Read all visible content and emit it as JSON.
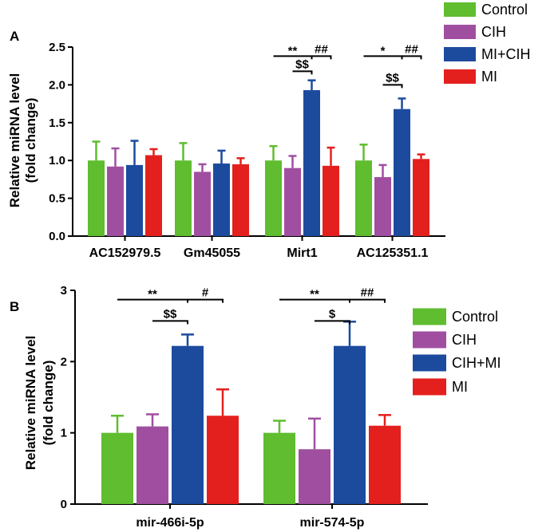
{
  "chart_data": [
    {
      "panel_label": "A",
      "type": "bar",
      "ylabel": [
        "Relative miRNA level",
        "(fold change)"
      ],
      "ylim": [
        0,
        2.5
      ],
      "yticks": [
        "0.0",
        "0.5",
        "1.0",
        "1.5",
        "2.0",
        "2.5"
      ],
      "yticks_values": [
        0,
        0.5,
        1.0,
        1.5,
        2.0,
        2.5
      ],
      "categories": [
        "AC152979.5",
        "Gm45055",
        "Mirt1",
        "AC125351.1"
      ],
      "legend": [
        "Control",
        "CIH",
        "MI+CIH",
        "MI"
      ],
      "series": [
        {
          "name": "Control",
          "color": "#5fbd2f",
          "values": [
            1.0,
            1.0,
            1.0,
            1.0
          ],
          "errors": [
            0.25,
            0.23,
            0.19,
            0.21
          ]
        },
        {
          "name": "CIH",
          "color": "#a04fa0",
          "values": [
            0.92,
            0.85,
            0.9,
            0.78
          ],
          "errors": [
            0.24,
            0.1,
            0.16,
            0.16
          ]
        },
        {
          "name": "MI+CIH",
          "color": "#1c4b9e",
          "values": [
            0.94,
            0.96,
            1.93,
            1.68
          ],
          "errors": [
            0.32,
            0.17,
            0.13,
            0.14
          ]
        },
        {
          "name": "MI",
          "color": "#e3201d",
          "values": [
            1.07,
            0.95,
            0.93,
            1.02
          ],
          "errors": [
            0.08,
            0.08,
            0.24,
            0.06
          ]
        }
      ],
      "annotations": [
        {
          "category": 2,
          "from": 0,
          "to": 2,
          "y": 2.38,
          "label": "**"
        },
        {
          "category": 2,
          "from": 1,
          "to": 2,
          "y": 2.18,
          "label": "$$"
        },
        {
          "category": 2,
          "from": 2,
          "to": 3,
          "y": 2.38,
          "label": "##"
        },
        {
          "category": 3,
          "from": 0,
          "to": 2,
          "y": 2.38,
          "label": "*"
        },
        {
          "category": 3,
          "from": 1,
          "to": 2,
          "y": 2.0,
          "label": "$$"
        },
        {
          "category": 3,
          "from": 2,
          "to": 3,
          "y": 2.38,
          "label": "##"
        }
      ]
    },
    {
      "panel_label": "B",
      "type": "bar",
      "ylabel": [
        "Relative miRNA level",
        "(fold change)"
      ],
      "ylim": [
        0,
        3
      ],
      "yticks": [
        "0",
        "1",
        "2",
        "3"
      ],
      "yticks_values": [
        0,
        1,
        2,
        3
      ],
      "categories": [
        "mir-466i-5p",
        "mir-574-5p"
      ],
      "legend": [
        "Control",
        "CIH",
        "CIH+MI",
        "MI"
      ],
      "series": [
        {
          "name": "Control",
          "color": "#5fbd2f",
          "values": [
            1.0,
            1.0
          ],
          "errors": [
            0.24,
            0.17
          ]
        },
        {
          "name": "CIH",
          "color": "#a04fa0",
          "values": [
            1.09,
            0.77
          ],
          "errors": [
            0.17,
            0.43
          ]
        },
        {
          "name": "CIH+MI",
          "color": "#1c4b9e",
          "values": [
            2.22,
            2.22
          ],
          "errors": [
            0.16,
            0.34
          ]
        },
        {
          "name": "MI",
          "color": "#e3201d",
          "values": [
            1.24,
            1.1
          ],
          "errors": [
            0.37,
            0.15
          ]
        }
      ],
      "annotations": [
        {
          "category": 0,
          "from": 0,
          "to": 2,
          "y": 2.87,
          "label": "**"
        },
        {
          "category": 0,
          "from": 1,
          "to": 2,
          "y": 2.57,
          "label": "$$"
        },
        {
          "category": 0,
          "from": 2,
          "to": 3,
          "y": 2.87,
          "label": "#"
        },
        {
          "category": 1,
          "from": 0,
          "to": 2,
          "y": 2.87,
          "label": "**"
        },
        {
          "category": 1,
          "from": 1,
          "to": 2,
          "y": 2.57,
          "label": "$"
        },
        {
          "category": 1,
          "from": 2,
          "to": 3,
          "y": 2.87,
          "label": "##"
        }
      ]
    }
  ]
}
